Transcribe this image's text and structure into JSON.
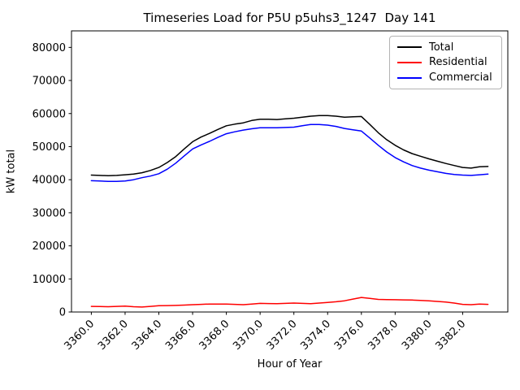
{
  "figure": {
    "background": "#ffffff"
  },
  "chart_data": {
    "type": "line",
    "title": "Timeseries Load for P5U p5uhs3_1247  Day 141",
    "xlabel": "Hour of Year",
    "ylabel": "kW total",
    "xlim": [
      3358.825,
      3384.675
    ],
    "ylim": [
      0,
      85000
    ],
    "grid": false,
    "legend": {
      "position": "upper right",
      "frame": true
    },
    "xticks": {
      "values": [
        3360,
        3362,
        3364,
        3366,
        3368,
        3370,
        3372,
        3374,
        3376,
        3378,
        3380,
        3382
      ],
      "labels": [
        "3360.0",
        "3362.0",
        "3364.0",
        "3366.0",
        "3368.0",
        "3370.0",
        "3372.0",
        "3374.0",
        "3376.0",
        "3378.0",
        "3380.0",
        "3382.0"
      ],
      "rotation": 45
    },
    "yticks": {
      "values": [
        0,
        10000,
        20000,
        30000,
        40000,
        50000,
        60000,
        70000,
        80000
      ],
      "labels": [
        "0",
        "10000",
        "20000",
        "30000",
        "40000",
        "50000",
        "60000",
        "70000",
        "80000"
      ]
    },
    "x": [
      3360.0,
      3360.5,
      3361.0,
      3361.5,
      3362.0,
      3362.5,
      3363.0,
      3363.5,
      3364.0,
      3364.5,
      3365.0,
      3365.5,
      3366.0,
      3366.5,
      3367.0,
      3367.5,
      3368.0,
      3368.5,
      3369.0,
      3369.5,
      3370.0,
      3370.5,
      3371.0,
      3371.5,
      3372.0,
      3372.5,
      3373.0,
      3373.5,
      3374.0,
      3374.5,
      3375.0,
      3375.5,
      3376.0,
      3376.5,
      3377.0,
      3377.5,
      3378.0,
      3378.5,
      3379.0,
      3379.5,
      3380.0,
      3380.5,
      3381.0,
      3381.5,
      3382.0,
      3382.5,
      3383.0,
      3383.5
    ],
    "series": [
      {
        "name": "Total",
        "color": "#000000",
        "values": [
          41400,
          41300,
          41200,
          41300,
          41500,
          41700,
          42100,
          42800,
          43700,
          45200,
          47000,
          49300,
          51500,
          52900,
          54000,
          55200,
          56300,
          56800,
          57200,
          57900,
          58300,
          58300,
          58200,
          58400,
          58600,
          58900,
          59200,
          59400,
          59400,
          59200,
          58900,
          59000,
          59100,
          56700,
          54200,
          52100,
          50400,
          49000,
          47900,
          47100,
          46300,
          45600,
          44900,
          44300,
          43700,
          43500,
          43900,
          44000
        ]
      },
      {
        "name": "Residential",
        "color": "#ff0000",
        "values": [
          1700,
          1650,
          1600,
          1700,
          1800,
          1600,
          1500,
          1700,
          1900,
          1950,
          2000,
          2100,
          2200,
          2300,
          2400,
          2400,
          2400,
          2300,
          2200,
          2400,
          2600,
          2550,
          2500,
          2600,
          2700,
          2600,
          2500,
          2700,
          2900,
          3100,
          3400,
          3900,
          4400,
          4100,
          3800,
          3750,
          3700,
          3650,
          3600,
          3500,
          3400,
          3200,
          3000,
          2700,
          2300,
          2200,
          2400,
          2300
        ]
      },
      {
        "name": "Commercial",
        "color": "#0000ff",
        "values": [
          39700,
          39600,
          39500,
          39500,
          39600,
          40000,
          40600,
          41100,
          41800,
          43200,
          45000,
          47200,
          49300,
          50500,
          51600,
          52800,
          53900,
          54500,
          55000,
          55400,
          55700,
          55700,
          55700,
          55800,
          55900,
          56300,
          56700,
          56700,
          56500,
          56100,
          55500,
          55100,
          54700,
          52600,
          50400,
          48400,
          46700,
          45400,
          44300,
          43500,
          42900,
          42400,
          41900,
          41600,
          41400,
          41300,
          41500,
          41700
        ]
      }
    ]
  }
}
